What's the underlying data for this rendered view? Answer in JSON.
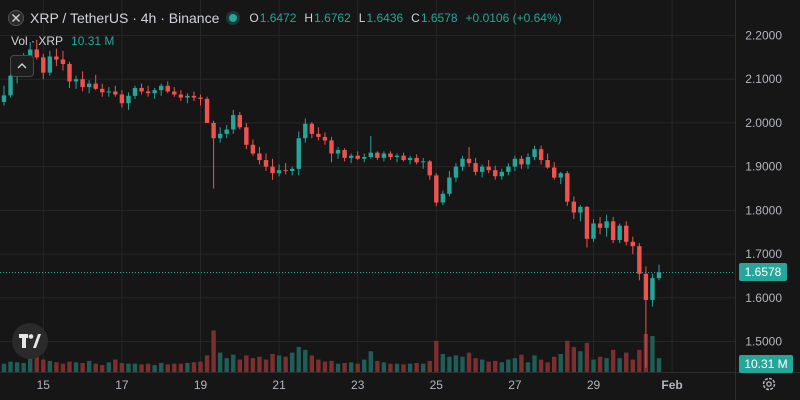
{
  "header": {
    "symbol": "XRP / TetherUS",
    "interval": "4h",
    "exchange": "Binance",
    "title_text": "XRP / TetherUS · 4h · Binance",
    "ohlc": [
      {
        "key": "O",
        "value": "1.6472"
      },
      {
        "key": "H",
        "value": "1.6762"
      },
      {
        "key": "L",
        "value": "1.6436"
      },
      {
        "key": "C",
        "value": "1.6578"
      }
    ],
    "change": "+0.0106 (+0.64%)"
  },
  "volume": {
    "label": "Vol · XRP",
    "value": "10.31 M"
  },
  "price_tag": "1.6578",
  "volume_tag": "10.31 M",
  "colors": {
    "up": "#26a69a",
    "down": "#ef5350",
    "up_vol": "#1f5d57",
    "down_vol": "#7b2f2e",
    "grid": "#262626",
    "text": "#b2b5be",
    "background": "#161616"
  },
  "icons": {
    "logo": "xrp-logo-icon",
    "status": "market-status-icon",
    "collapse": "chevron-up-icon",
    "brand": "tradingview-logo-icon",
    "settings": "gear-icon"
  },
  "chart_data": {
    "type": "candlestick",
    "y_axis": {
      "ticks": [
        "2.2000",
        "2.1000",
        "2.0000",
        "1.9000",
        "1.8000",
        "1.7000",
        "1.6000",
        "1.5000"
      ],
      "tick_values": [
        2.2,
        2.1,
        2.0,
        1.9,
        1.8,
        1.7,
        1.6,
        1.5
      ],
      "range": [
        1.43,
        2.25
      ]
    },
    "x_axis": {
      "labels": [
        "15",
        "17",
        "19",
        "21",
        "23",
        "25",
        "27",
        "29",
        "Feb"
      ],
      "label_positions": [
        6,
        18,
        30,
        42,
        54,
        66,
        78,
        90,
        102
      ]
    },
    "last_price": 1.6578,
    "candles": [
      [
        2.048,
        2.085,
        2.04,
        2.063
      ],
      [
        2.063,
        2.115,
        2.058,
        2.108
      ],
      [
        2.108,
        2.148,
        2.09,
        2.132
      ],
      [
        2.132,
        2.16,
        2.125,
        2.15
      ],
      [
        2.15,
        2.185,
        2.14,
        2.168
      ],
      [
        2.168,
        2.19,
        2.145,
        2.15
      ],
      [
        2.15,
        2.158,
        2.1,
        2.115
      ],
      [
        2.115,
        2.165,
        2.108,
        2.152
      ],
      [
        2.152,
        2.17,
        2.13,
        2.145
      ],
      [
        2.145,
        2.165,
        2.12,
        2.135
      ],
      [
        2.135,
        2.14,
        2.08,
        2.095
      ],
      [
        2.095,
        2.108,
        2.078,
        2.1
      ],
      [
        2.1,
        2.118,
        2.072,
        2.082
      ],
      [
        2.082,
        2.098,
        2.068,
        2.09
      ],
      [
        2.09,
        2.11,
        2.075,
        2.078
      ],
      [
        2.078,
        2.09,
        2.06,
        2.07
      ],
      [
        2.07,
        2.082,
        2.06,
        2.072
      ],
      [
        2.072,
        2.085,
        2.06,
        2.065
      ],
      [
        2.065,
        2.075,
        2.035,
        2.045
      ],
      [
        2.045,
        2.07,
        2.03,
        2.062
      ],
      [
        2.062,
        2.085,
        2.055,
        2.08
      ],
      [
        2.08,
        2.09,
        2.065,
        2.072
      ],
      [
        2.072,
        2.085,
        2.06,
        2.068
      ],
      [
        2.068,
        2.08,
        2.055,
        2.075
      ],
      [
        2.075,
        2.09,
        2.062,
        2.085
      ],
      [
        2.085,
        2.095,
        2.068,
        2.072
      ],
      [
        2.072,
        2.082,
        2.06,
        2.065
      ],
      [
        2.065,
        2.075,
        2.05,
        2.058
      ],
      [
        2.058,
        2.068,
        2.045,
        2.062
      ],
      [
        2.062,
        2.072,
        2.05,
        2.058
      ],
      [
        2.058,
        2.065,
        2.04,
        2.055
      ],
      [
        2.055,
        2.06,
        2.0,
        2.0
      ],
      [
        2.0,
        2.005,
        1.85,
        1.965
      ],
      [
        1.965,
        1.99,
        1.955,
        1.975
      ],
      [
        1.975,
        1.995,
        1.965,
        1.985
      ],
      [
        1.985,
        2.03,
        1.975,
        2.018
      ],
      [
        2.018,
        2.025,
        1.985,
        1.99
      ],
      [
        1.99,
        2.0,
        1.94,
        1.95
      ],
      [
        1.95,
        1.962,
        1.925,
        1.93
      ],
      [
        1.93,
        1.945,
        1.905,
        1.915
      ],
      [
        1.915,
        1.93,
        1.89,
        1.9
      ],
      [
        1.9,
        1.918,
        1.87,
        1.885
      ],
      [
        1.885,
        1.905,
        1.878,
        1.892
      ],
      [
        1.892,
        1.908,
        1.882,
        1.89
      ],
      [
        1.89,
        1.9,
        1.88,
        1.895
      ],
      [
        1.895,
        1.98,
        1.88,
        1.965
      ],
      [
        1.965,
        2.01,
        1.955,
        1.998
      ],
      [
        1.998,
        2.002,
        1.965,
        1.975
      ],
      [
        1.975,
        1.99,
        1.96,
        1.968
      ],
      [
        1.968,
        1.978,
        1.95,
        1.96
      ],
      [
        1.96,
        1.968,
        1.91,
        1.93
      ],
      [
        1.93,
        1.945,
        1.918,
        1.938
      ],
      [
        1.938,
        1.942,
        1.912,
        1.92
      ],
      [
        1.92,
        1.93,
        1.908,
        1.925
      ],
      [
        1.925,
        1.935,
        1.915,
        1.918
      ],
      [
        1.918,
        1.93,
        1.91,
        1.922
      ],
      [
        1.922,
        1.97,
        1.918,
        1.932
      ],
      [
        1.932,
        1.935,
        1.915,
        1.92
      ],
      [
        1.92,
        1.935,
        1.912,
        1.93
      ],
      [
        1.93,
        1.935,
        1.915,
        1.922
      ],
      [
        1.922,
        1.93,
        1.91,
        1.925
      ],
      [
        1.925,
        1.932,
        1.912,
        1.915
      ],
      [
        1.915,
        1.925,
        1.905,
        1.92
      ],
      [
        1.92,
        1.928,
        1.905,
        1.91
      ],
      [
        1.91,
        1.92,
        1.895,
        1.912
      ],
      [
        1.912,
        1.915,
        1.87,
        1.88
      ],
      [
        1.88,
        1.885,
        1.81,
        1.818
      ],
      [
        1.818,
        1.845,
        1.812,
        1.838
      ],
      [
        1.838,
        1.89,
        1.832,
        1.875
      ],
      [
        1.875,
        1.908,
        1.865,
        1.9
      ],
      [
        1.9,
        1.925,
        1.89,
        1.918
      ],
      [
        1.918,
        1.945,
        1.9,
        1.908
      ],
      [
        1.908,
        1.92,
        1.88,
        1.888
      ],
      [
        1.888,
        1.905,
        1.875,
        1.9
      ],
      [
        1.9,
        1.915,
        1.885,
        1.892
      ],
      [
        1.892,
        1.902,
        1.87,
        1.878
      ],
      [
        1.878,
        1.895,
        1.87,
        1.888
      ],
      [
        1.888,
        1.908,
        1.88,
        1.9
      ],
      [
        1.9,
        1.925,
        1.89,
        1.918
      ],
      [
        1.918,
        1.925,
        1.895,
        1.905
      ],
      [
        1.905,
        1.93,
        1.895,
        1.922
      ],
      [
        1.922,
        1.948,
        1.915,
        1.94
      ],
      [
        1.94,
        1.948,
        1.905,
        1.915
      ],
      [
        1.915,
        1.93,
        1.895,
        1.898
      ],
      [
        1.898,
        1.91,
        1.87,
        1.875
      ],
      [
        1.875,
        1.888,
        1.86,
        1.885
      ],
      [
        1.885,
        1.89,
        1.81,
        1.82
      ],
      [
        1.82,
        1.832,
        1.78,
        1.795
      ],
      [
        1.795,
        1.812,
        1.775,
        1.808
      ],
      [
        1.808,
        1.81,
        1.715,
        1.735
      ],
      [
        1.735,
        1.78,
        1.728,
        1.77
      ],
      [
        1.77,
        1.785,
        1.745,
        1.76
      ],
      [
        1.76,
        1.79,
        1.74,
        1.775
      ],
      [
        1.775,
        1.785,
        1.725,
        1.732
      ],
      [
        1.732,
        1.77,
        1.725,
        1.765
      ],
      [
        1.765,
        1.775,
        1.72,
        1.728
      ],
      [
        1.728,
        1.74,
        1.7,
        1.718
      ],
      [
        1.718,
        1.725,
        1.64,
        1.655
      ],
      [
        1.655,
        1.672,
        1.44,
        1.595
      ],
      [
        1.595,
        1.655,
        1.58,
        1.645
      ],
      [
        1.645,
        1.676,
        1.64,
        1.658
      ]
    ],
    "volumes": [
      0.12,
      0.15,
      0.14,
      0.13,
      0.22,
      0.28,
      0.18,
      0.16,
      0.14,
      0.12,
      0.15,
      0.14,
      0.13,
      0.16,
      0.12,
      0.1,
      0.14,
      0.18,
      0.13,
      0.12,
      0.12,
      0.11,
      0.12,
      0.1,
      0.13,
      0.11,
      0.12,
      0.12,
      0.13,
      0.14,
      0.15,
      0.24,
      0.6,
      0.28,
      0.2,
      0.25,
      0.18,
      0.24,
      0.2,
      0.22,
      0.18,
      0.26,
      0.24,
      0.22,
      0.28,
      0.36,
      0.32,
      0.24,
      0.18,
      0.15,
      0.16,
      0.12,
      0.13,
      0.14,
      0.12,
      0.18,
      0.3,
      0.16,
      0.14,
      0.12,
      0.12,
      0.11,
      0.12,
      0.13,
      0.12,
      0.16,
      0.45,
      0.26,
      0.22,
      0.24,
      0.22,
      0.28,
      0.2,
      0.18,
      0.15,
      0.16,
      0.14,
      0.18,
      0.2,
      0.25,
      0.14,
      0.24,
      0.18,
      0.14,
      0.22,
      0.26,
      0.45,
      0.36,
      0.3,
      0.42,
      0.18,
      0.22,
      0.2,
      0.32,
      0.2,
      0.28,
      0.18,
      0.32,
      0.55,
      0.52,
      0.2
    ]
  }
}
